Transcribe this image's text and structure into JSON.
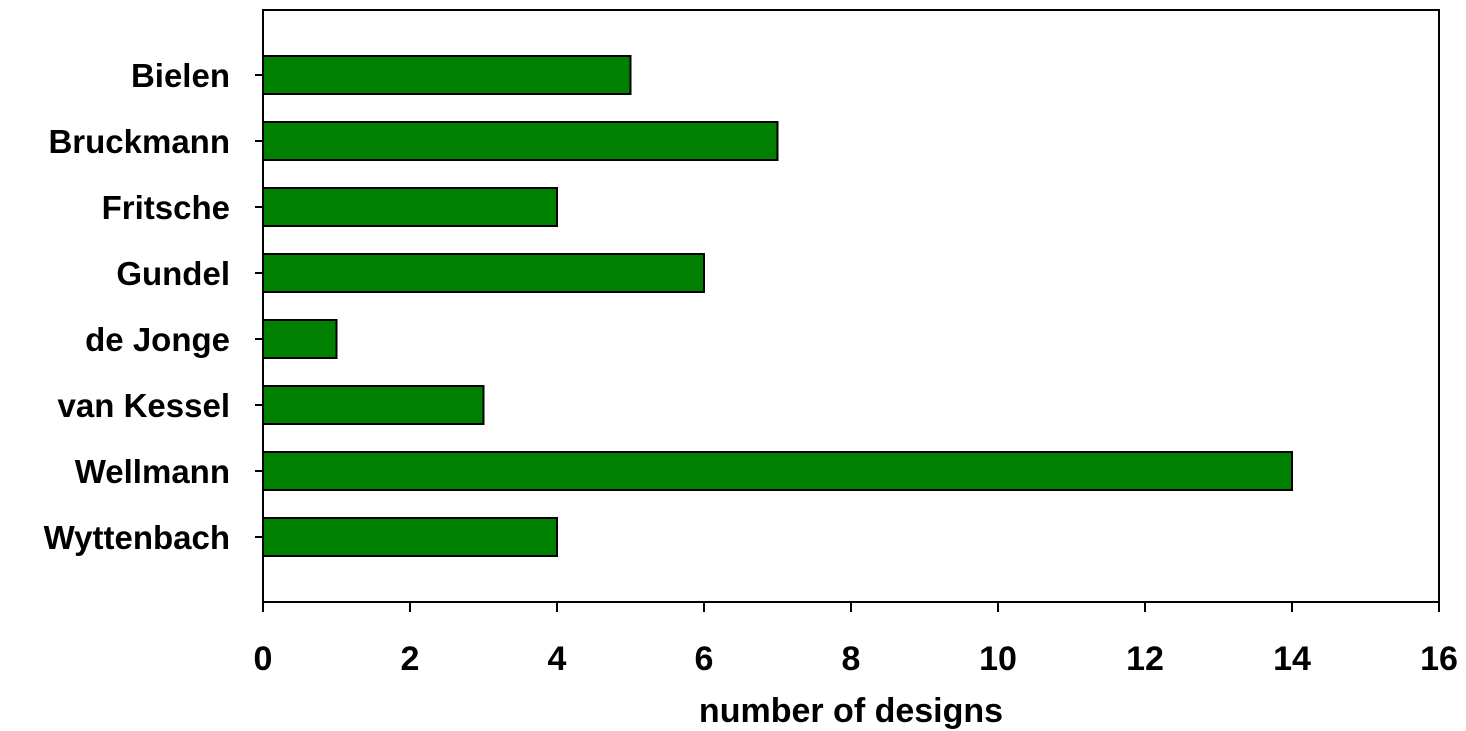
{
  "chart_data": {
    "type": "bar",
    "orientation": "horizontal",
    "categories": [
      "Bielen",
      "Bruckmann",
      "Fritsche",
      "Gundel",
      "de Jonge",
      "van Kessel",
      "Wellmann",
      "Wyttenbach"
    ],
    "values": [
      5,
      7,
      4,
      6,
      1,
      3,
      14,
      4
    ],
    "xlabel": "number of designs",
    "ylabel": "",
    "title": "",
    "xlim": [
      0,
      16
    ],
    "xticks": [
      0,
      2,
      4,
      6,
      8,
      10,
      12,
      14,
      16
    ],
    "xtick_labels": [
      "0",
      "2",
      "4",
      "6",
      "8",
      "10",
      "12",
      "14",
      "16"
    ],
    "bar_color": "#008000",
    "grid": false,
    "legend": "none"
  }
}
